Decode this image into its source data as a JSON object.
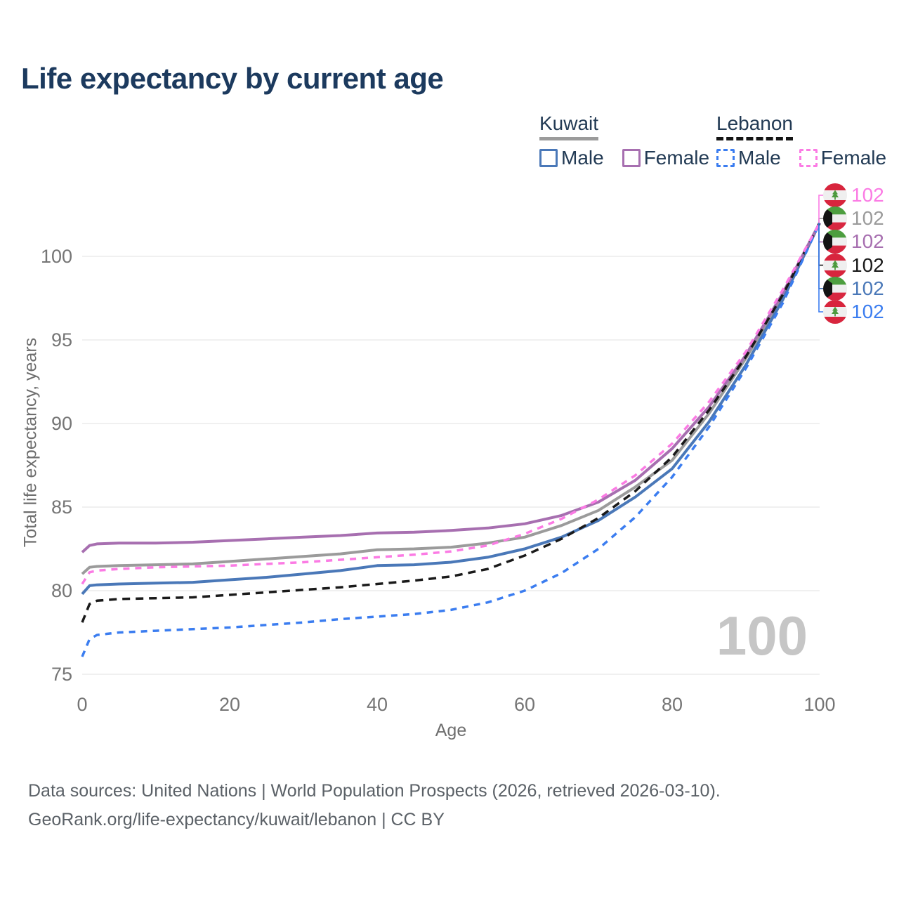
{
  "title": "Life expectancy by current age",
  "watermark_age": "100",
  "legend": {
    "groups": [
      {
        "label": "Kuwait",
        "line_style": "solid",
        "underline_color": "#9b9b9b",
        "items": [
          {
            "label": "Male",
            "color": "#4a78b8",
            "dashed": false
          },
          {
            "label": "Female",
            "color": "#a76fb0",
            "dashed": false
          }
        ]
      },
      {
        "label": "Lebanon",
        "line_style": "dashed",
        "underline_color": "#151515",
        "items": [
          {
            "label": "Male",
            "color": "#3b7df0",
            "dashed": true
          },
          {
            "label": "Female",
            "color": "#fb7be4",
            "dashed": true
          }
        ]
      }
    ]
  },
  "footer": {
    "line1": "Data sources: United Nations | World Population Prospects (2026, retrieved 2026-03-10).",
    "line2": "GeoRank.org/life-expectancy/kuwait/lebanon | CC BY"
  },
  "chart_data": {
    "type": "line",
    "title": "Life expectancy by current age",
    "xlabel": "Age",
    "ylabel": "Total life expectancy, years",
    "xlim": [
      0,
      100
    ],
    "ylim": [
      75,
      102
    ],
    "xticks": [
      0,
      20,
      40,
      60,
      80,
      100
    ],
    "yticks": [
      75,
      80,
      85,
      90,
      95,
      100
    ],
    "grid": "horizontal-only",
    "grid_color": "#e7e7e7",
    "x": [
      0,
      1,
      2,
      5,
      10,
      15,
      20,
      25,
      30,
      35,
      40,
      45,
      50,
      55,
      60,
      65,
      70,
      75,
      80,
      85,
      90,
      95,
      100
    ],
    "series": [
      {
        "name": "Kuwait",
        "country": "Kuwait",
        "group": "Total",
        "color": "#9b9b9b",
        "dashed": false,
        "annotation_row": 1,
        "end_value": 102,
        "flag": "kuwait",
        "values": [
          81.0,
          81.4,
          81.45,
          81.5,
          81.55,
          81.6,
          81.75,
          81.9,
          82.05,
          82.2,
          82.45,
          82.5,
          82.6,
          82.85,
          83.2,
          83.9,
          84.8,
          86.2,
          87.8,
          90.6,
          93.9,
          97.6,
          102
        ]
      },
      {
        "name": "Kuwait Male",
        "country": "Kuwait",
        "group": "Male",
        "color": "#4a78b8",
        "dashed": false,
        "annotation_row": 4,
        "end_value": 102,
        "flag": "kuwait",
        "values": [
          79.8,
          80.3,
          80.35,
          80.4,
          80.45,
          80.5,
          80.65,
          80.8,
          81.0,
          81.2,
          81.5,
          81.55,
          81.7,
          82.0,
          82.5,
          83.2,
          84.2,
          85.6,
          87.3,
          90.1,
          93.5,
          97.4,
          102
        ]
      },
      {
        "name": "Kuwait Female",
        "country": "Kuwait",
        "group": "Female",
        "color": "#a76fb0",
        "dashed": false,
        "annotation_row": 2,
        "end_value": 102,
        "flag": "kuwait",
        "values": [
          82.3,
          82.7,
          82.8,
          82.85,
          82.85,
          82.9,
          83.0,
          83.1,
          83.2,
          83.3,
          83.45,
          83.5,
          83.6,
          83.75,
          84.0,
          84.5,
          85.3,
          86.6,
          88.5,
          91.0,
          94.1,
          97.8,
          102
        ]
      },
      {
        "name": "Lebanon",
        "country": "Lebanon",
        "group": "Total",
        "color": "#1a1a1a",
        "dashed": true,
        "annotation_row": 3,
        "end_value": 102,
        "flag": "lebanon",
        "values": [
          78.1,
          79.2,
          79.4,
          79.5,
          79.55,
          79.6,
          79.75,
          79.9,
          80.05,
          80.2,
          80.4,
          80.6,
          80.85,
          81.3,
          82.1,
          83.1,
          84.35,
          85.95,
          88.0,
          90.8,
          94.0,
          97.7,
          102
        ]
      },
      {
        "name": "Lebanon Male",
        "country": "Lebanon",
        "group": "Male",
        "color": "#3b7df0",
        "dashed": true,
        "annotation_row": 5,
        "end_value": 102,
        "flag": "lebanon",
        "values": [
          76.05,
          77.1,
          77.35,
          77.5,
          77.6,
          77.7,
          77.8,
          77.95,
          78.1,
          78.3,
          78.45,
          78.6,
          78.85,
          79.3,
          80.0,
          81.05,
          82.5,
          84.4,
          86.8,
          89.8,
          93.3,
          97.2,
          102
        ]
      },
      {
        "name": "Lebanon Female",
        "country": "Lebanon",
        "group": "Female",
        "color": "#fb7be4",
        "dashed": true,
        "annotation_row": 0,
        "end_value": 102,
        "flag": "lebanon",
        "values": [
          80.4,
          81.1,
          81.2,
          81.3,
          81.4,
          81.45,
          81.5,
          81.6,
          81.7,
          81.85,
          82.0,
          82.15,
          82.35,
          82.7,
          83.4,
          84.3,
          85.45,
          86.9,
          88.8,
          91.3,
          94.3,
          98.0,
          102
        ]
      }
    ],
    "legend_position": "top-right",
    "end_annotation_rows": [
      {
        "row": 0,
        "series": "Lebanon Female",
        "flag": "lebanon",
        "value": "102",
        "color": "#fb7be4"
      },
      {
        "row": 1,
        "series": "Kuwait",
        "flag": "kuwait",
        "value": "102",
        "color": "#9b9b9b"
      },
      {
        "row": 2,
        "series": "Kuwait Female",
        "flag": "kuwait",
        "value": "102",
        "color": "#a76fb0"
      },
      {
        "row": 3,
        "series": "Lebanon",
        "flag": "lebanon",
        "value": "102",
        "color": "#1a1a1a"
      },
      {
        "row": 4,
        "series": "Kuwait Male",
        "flag": "kuwait",
        "value": "102",
        "color": "#4a78b8"
      },
      {
        "row": 5,
        "series": "Lebanon Male",
        "flag": "lebanon",
        "value": "102",
        "color": "#3b7df0"
      }
    ]
  }
}
